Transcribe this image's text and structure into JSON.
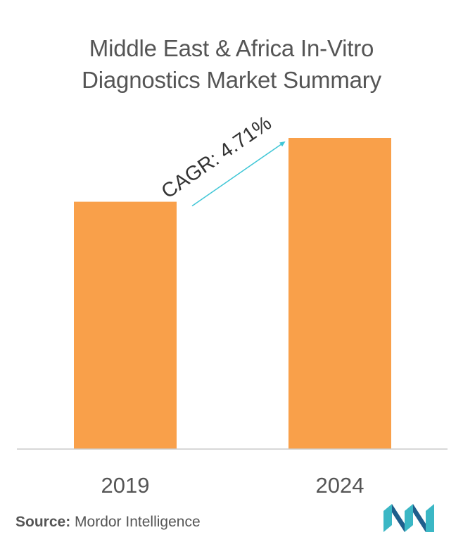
{
  "title": {
    "line1": "Middle East & Africa In-Vitro",
    "line2": "Diagnostics Market Summary"
  },
  "chart_data": {
    "type": "bar",
    "categories": [
      "2019",
      "2024"
    ],
    "values": [
      79.5,
      100
    ],
    "value_note": "relative heights, no axis values printed",
    "ylim": [
      0,
      100
    ],
    "xlabel": "",
    "ylabel": "",
    "grid": false,
    "annotation": {
      "text": "CAGR: 4.71%",
      "from": "2019",
      "to": "2024"
    }
  },
  "source": {
    "label": "Source:",
    "text": "Mordor Intelligence"
  },
  "colors": {
    "bar": "#F9A04A",
    "arrow": "#3FC6D6",
    "text": "#555555",
    "axis": "#CCCCCC",
    "logo_dark": "#1F5E8C",
    "logo_light": "#3BB7C5"
  },
  "logo": {
    "icon": "mordor-intelligence-logo-icon"
  }
}
